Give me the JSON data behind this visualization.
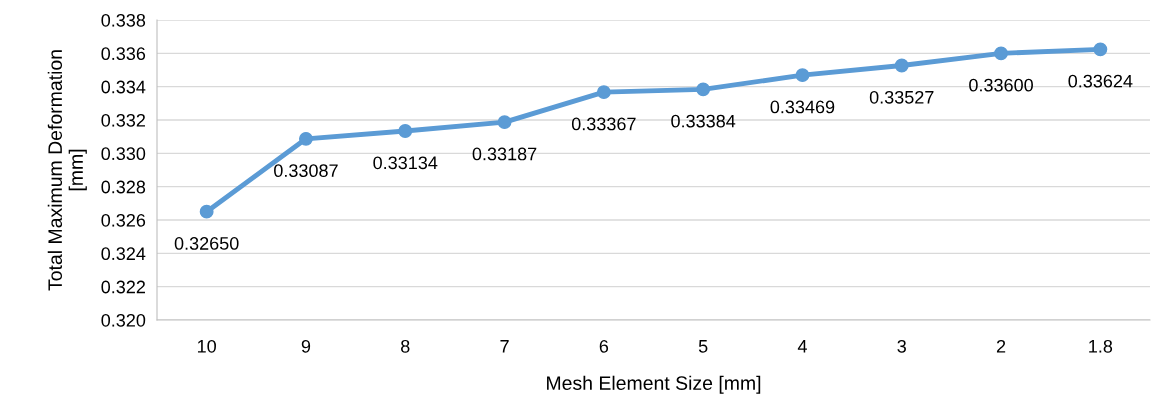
{
  "chart_data": {
    "type": "line",
    "xlabel": "Mesh Element Size [mm]",
    "ylabel": "Total Maximum Deformation\n[mm]",
    "categories": [
      "10",
      "9",
      "8",
      "7",
      "6",
      "5",
      "4",
      "3",
      "2",
      "1.8"
    ],
    "series": [
      {
        "color": "#5b9bd5",
        "values": [
          0.3265,
          0.33087,
          0.33134,
          0.33187,
          0.33367,
          0.33384,
          0.33469,
          0.33527,
          0.336,
          0.33624
        ],
        "value_labels": [
          "0.32650",
          "0.33087",
          "0.33134",
          "0.33187",
          "0.33367",
          "0.33384",
          "0.33469",
          "0.33527",
          "0.33600",
          "0.33624"
        ]
      }
    ],
    "ylim": [
      0.32,
      0.338
    ],
    "yticks": [
      {
        "value": 0.32,
        "label": "0.320"
      },
      {
        "value": 0.322,
        "label": "0.322"
      },
      {
        "value": 0.324,
        "label": "0.324"
      },
      {
        "value": 0.326,
        "label": "0.326"
      },
      {
        "value": 0.328,
        "label": "0.328"
      },
      {
        "value": 0.33,
        "label": "0.330"
      },
      {
        "value": 0.332,
        "label": "0.332"
      },
      {
        "value": 0.334,
        "label": "0.334"
      },
      {
        "value": 0.336,
        "label": "0.336"
      },
      {
        "value": 0.338,
        "label": "0.338"
      }
    ],
    "grid": "y",
    "marker": "circle",
    "line_style": "solid"
  }
}
